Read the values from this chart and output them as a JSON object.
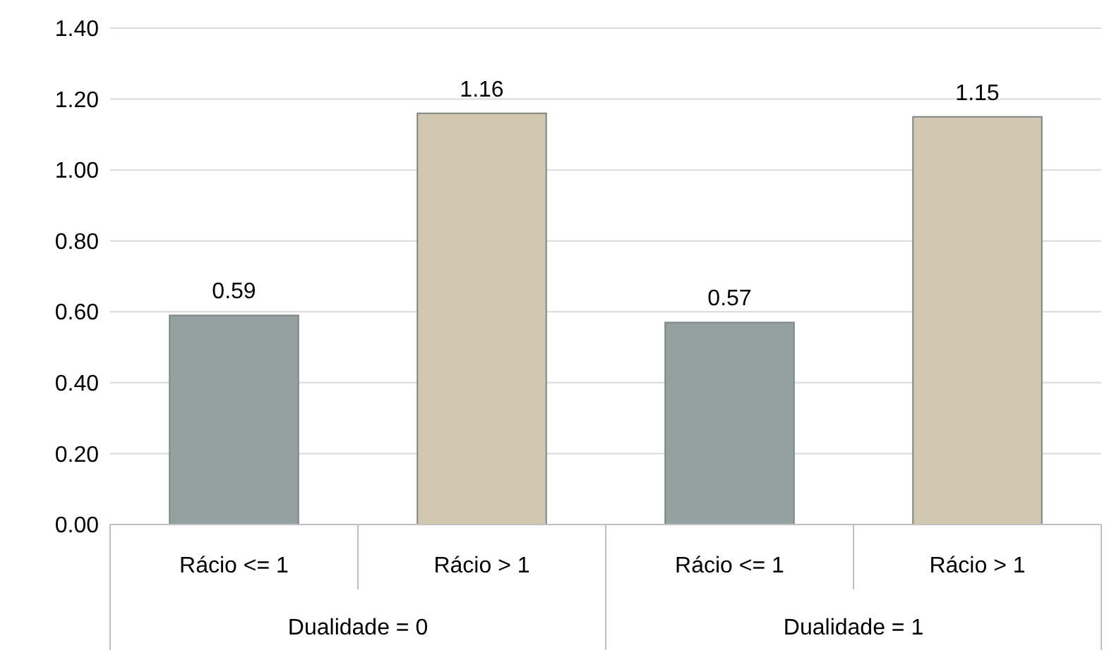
{
  "chart_data": {
    "type": "bar",
    "categories": [
      "Rácio <= 1",
      "Rácio > 1",
      "Rácio <= 1",
      "Rácio > 1"
    ],
    "values": [
      0.59,
      1.16,
      0.57,
      1.15
    ],
    "colors": [
      "#95a0a0",
      "#d2c8b0",
      "#95a0a0",
      "#d2c8b0"
    ],
    "ylim": [
      0,
      1.4
    ],
    "yticks": [
      {
        "value": 0,
        "label": "0.00"
      },
      {
        "value": 0.2,
        "label": "0.20"
      },
      {
        "value": 0.4,
        "label": "0.40"
      },
      {
        "value": 0.6,
        "label": "0.60"
      },
      {
        "value": 0.8,
        "label": "0.80"
      },
      {
        "value": 1,
        "label": "1.00"
      },
      {
        "value": 1.2,
        "label": "1.20"
      },
      {
        "value": 1.4,
        "label": "1.40"
      }
    ],
    "grid": "y",
    "data_labels": true,
    "annotations": [
      "Dualidade = 0",
      "Dualidade = 1"
    ]
  }
}
